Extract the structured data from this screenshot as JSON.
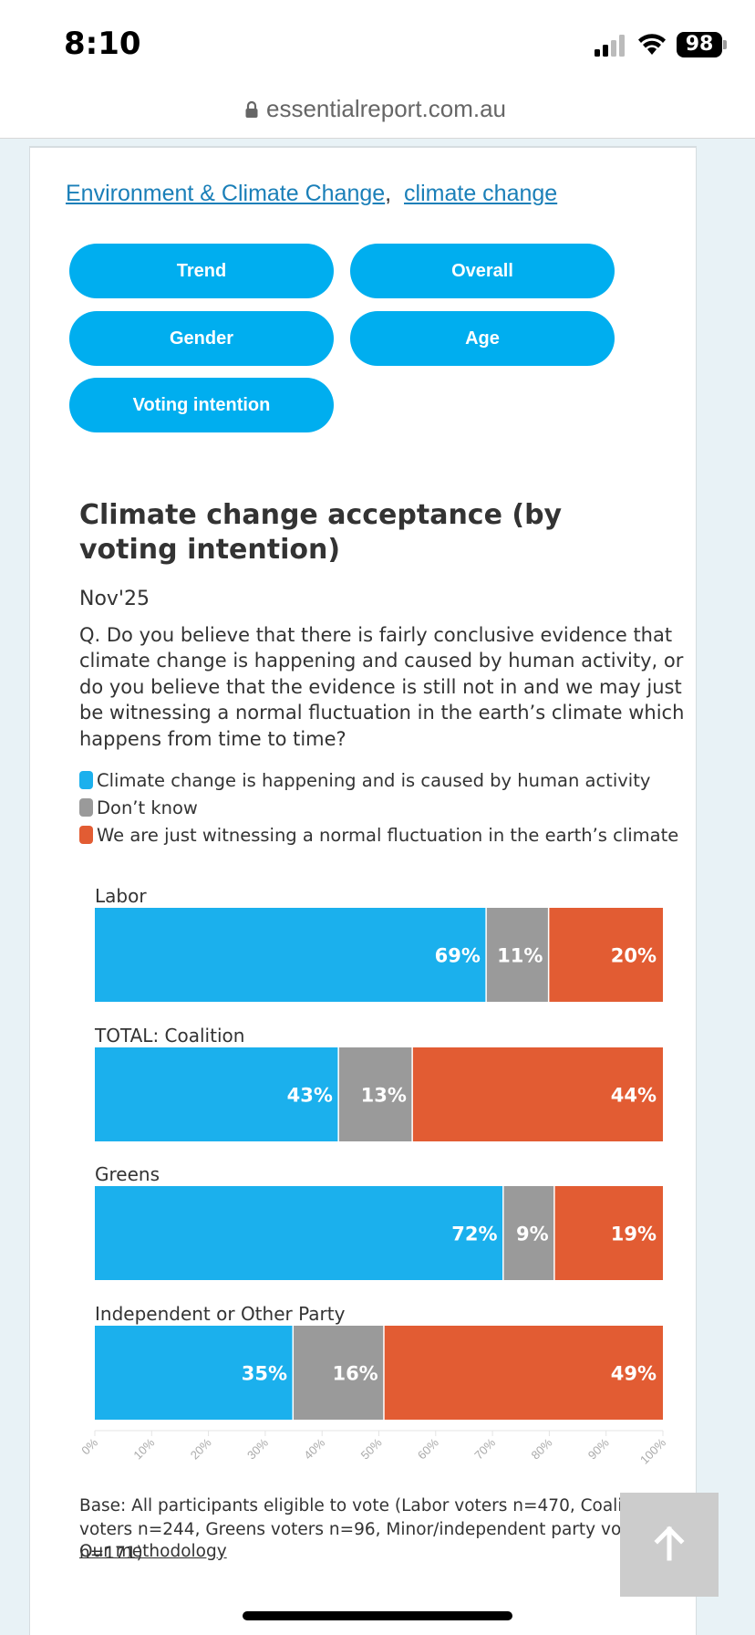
{
  "status_bar": {
    "time": "8:10",
    "battery": "98"
  },
  "browser": {
    "url": "essentialreport.com.au"
  },
  "tags": {
    "tag1": "Environment & Climate Change",
    "separator": ",",
    "tag2": "climate change"
  },
  "buttons": {
    "trend": "Trend",
    "overall": "Overall",
    "gender": "Gender",
    "age": "Age",
    "voting_intention": "Voting intention"
  },
  "chart_header": {
    "title": "Climate change acceptance (by voting intention)",
    "date": "Nov'25",
    "question": "Q. Do you believe that there is fairly conclusive evidence that climate change is happening and caused by human activity, or do you believe that the evidence is still not in and we may just be witnessing a normal fluctuation in the earth’s climate which happens from time to time?"
  },
  "chart_data": {
    "type": "bar",
    "orientation": "horizontal",
    "stacked": true,
    "categories": [
      "Labor",
      "TOTAL: Coalition",
      "Greens",
      "Independent or Other Party"
    ],
    "series": [
      {
        "name": "Climate change is happening and is caused by human activity",
        "color": "#1bb0ed",
        "values": [
          69,
          43,
          72,
          35
        ]
      },
      {
        "name": "Don’t know",
        "color": "#9a9a9a",
        "values": [
          11,
          13,
          9,
          16
        ]
      },
      {
        "name": "We are just witnessing a normal fluctuation in the earth’s climate",
        "color": "#e25c33",
        "values": [
          20,
          44,
          19,
          49
        ]
      }
    ],
    "value_suffix": "%",
    "xlim": [
      0,
      100
    ],
    "x_ticks": [
      "0%",
      "10%",
      "20%",
      "30%",
      "40%",
      "50%",
      "60%",
      "70%",
      "80%",
      "90%",
      "100%"
    ],
    "legend_position": "top"
  },
  "footer": {
    "base": "Base: All participants eligible to vote (Labor voters n=470, Coalition voters n=244, Greens voters n=96, Minor/independent party voters n=171)",
    "methodology": "Our methodology"
  }
}
